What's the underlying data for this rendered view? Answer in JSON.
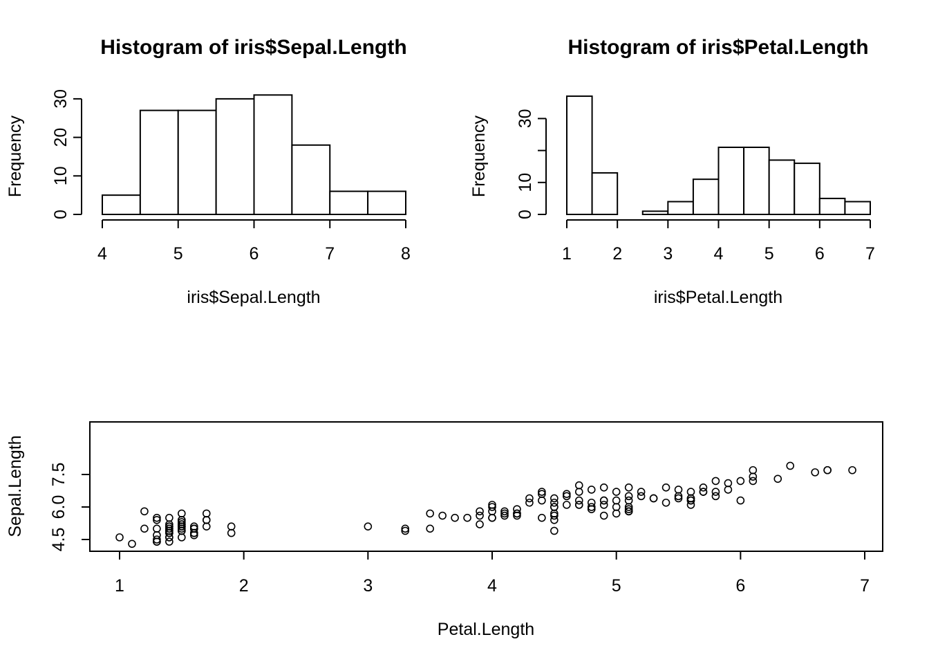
{
  "chart_data": [
    {
      "type": "bar",
      "subtype": "histogram",
      "title": "Histogram of iris$Sepal.Length",
      "xlabel": "iris$Sepal.Length",
      "ylabel": "Frequency",
      "breaks": [
        4,
        4.5,
        5,
        5.5,
        6,
        6.5,
        7,
        7.5,
        8
      ],
      "values": [
        5,
        27,
        27,
        30,
        31,
        18,
        6,
        6
      ],
      "xlim": [
        4,
        8
      ],
      "ylim": [
        0,
        31
      ],
      "xticks": [
        4,
        5,
        6,
        7,
        8
      ],
      "yticks": [
        0,
        10,
        20,
        30
      ],
      "grid": false
    },
    {
      "type": "bar",
      "subtype": "histogram",
      "title": "Histogram of iris$Petal.Length",
      "xlabel": "iris$Petal.Length",
      "ylabel": "Frequency",
      "breaks": [
        1,
        1.5,
        2,
        2.5,
        3,
        3.5,
        4,
        4.5,
        5,
        5.5,
        6,
        6.5,
        7
      ],
      "values": [
        37,
        13,
        0,
        1,
        4,
        11,
        21,
        21,
        17,
        16,
        5,
        4
      ],
      "xlim": [
        1,
        7
      ],
      "ylim": [
        0,
        37
      ],
      "xticks": [
        1,
        2,
        3,
        4,
        5,
        6,
        7
      ],
      "yticks": [
        0,
        10,
        20,
        30
      ],
      "ytick_labels": [
        "0",
        "10",
        "",
        "30"
      ],
      "grid": false
    },
    {
      "type": "scatter",
      "xlabel": "Petal.Length",
      "ylabel": "Sepal.Length",
      "xlim": [
        0.76,
        7.14
      ],
      "ylim": [
        4.3,
        7.9
      ],
      "xticks": [
        1,
        2,
        3,
        4,
        5,
        6,
        7
      ],
      "yticks": [
        4.5,
        6.0,
        7.5
      ],
      "ytick_labels": [
        "4.5",
        "6.0",
        "7.5"
      ],
      "grid": false,
      "points": [
        [
          1.4,
          5.1
        ],
        [
          1.4,
          4.9
        ],
        [
          1.3,
          4.7
        ],
        [
          1.5,
          4.6
        ],
        [
          1.4,
          5.0
        ],
        [
          1.7,
          5.4
        ],
        [
          1.4,
          4.6
        ],
        [
          1.5,
          5.0
        ],
        [
          1.4,
          4.4
        ],
        [
          1.5,
          4.9
        ],
        [
          1.5,
          5.4
        ],
        [
          1.6,
          4.8
        ],
        [
          1.4,
          4.8
        ],
        [
          1.1,
          4.3
        ],
        [
          1.2,
          5.8
        ],
        [
          1.5,
          5.7
        ],
        [
          1.3,
          5.4
        ],
        [
          1.4,
          5.1
        ],
        [
          1.7,
          5.7
        ],
        [
          1.5,
          5.1
        ],
        [
          1.7,
          5.4
        ],
        [
          1.5,
          5.1
        ],
        [
          1.0,
          4.6
        ],
        [
          1.7,
          5.1
        ],
        [
          1.9,
          4.8
        ],
        [
          1.6,
          5.0
        ],
        [
          1.6,
          5.0
        ],
        [
          1.5,
          5.2
        ],
        [
          1.4,
          5.2
        ],
        [
          1.6,
          4.7
        ],
        [
          1.6,
          4.8
        ],
        [
          1.5,
          5.4
        ],
        [
          1.5,
          5.2
        ],
        [
          1.4,
          5.5
        ],
        [
          1.5,
          4.9
        ],
        [
          1.2,
          5.0
        ],
        [
          1.3,
          5.5
        ],
        [
          1.4,
          4.9
        ],
        [
          1.3,
          4.4
        ],
        [
          1.5,
          5.1
        ],
        [
          1.3,
          5.0
        ],
        [
          1.3,
          4.5
        ],
        [
          1.3,
          4.4
        ],
        [
          1.6,
          5.0
        ],
        [
          1.9,
          5.1
        ],
        [
          1.4,
          4.8
        ],
        [
          1.6,
          5.1
        ],
        [
          1.4,
          4.6
        ],
        [
          1.5,
          5.3
        ],
        [
          1.4,
          5.0
        ],
        [
          4.7,
          7.0
        ],
        [
          4.5,
          6.4
        ],
        [
          4.9,
          6.9
        ],
        [
          4.0,
          5.5
        ],
        [
          4.6,
          6.5
        ],
        [
          4.5,
          5.7
        ],
        [
          4.7,
          6.3
        ],
        [
          3.3,
          4.9
        ],
        [
          4.6,
          6.6
        ],
        [
          3.9,
          5.2
        ],
        [
          3.5,
          5.0
        ],
        [
          4.2,
          5.9
        ],
        [
          4.0,
          6.0
        ],
        [
          4.7,
          6.1
        ],
        [
          3.6,
          5.6
        ],
        [
          4.4,
          6.7
        ],
        [
          4.5,
          5.6
        ],
        [
          4.1,
          5.8
        ],
        [
          4.5,
          6.2
        ],
        [
          3.9,
          5.6
        ],
        [
          4.8,
          5.9
        ],
        [
          4.0,
          6.1
        ],
        [
          4.9,
          6.3
        ],
        [
          4.7,
          6.1
        ],
        [
          4.3,
          6.4
        ],
        [
          4.4,
          6.6
        ],
        [
          4.8,
          6.8
        ],
        [
          5.0,
          6.7
        ],
        [
          4.5,
          6.0
        ],
        [
          3.5,
          5.7
        ],
        [
          3.8,
          5.5
        ],
        [
          3.7,
          5.5
        ],
        [
          3.9,
          5.8
        ],
        [
          5.1,
          6.0
        ],
        [
          4.5,
          5.4
        ],
        [
          4.5,
          6.0
        ],
        [
          4.7,
          6.7
        ],
        [
          4.4,
          6.3
        ],
        [
          4.1,
          5.6
        ],
        [
          4.0,
          5.5
        ],
        [
          4.4,
          5.5
        ],
        [
          4.6,
          6.1
        ],
        [
          4.0,
          5.8
        ],
        [
          3.3,
          5.0
        ],
        [
          4.2,
          5.6
        ],
        [
          4.2,
          5.7
        ],
        [
          4.2,
          5.7
        ],
        [
          4.3,
          6.2
        ],
        [
          3.0,
          5.1
        ],
        [
          4.1,
          5.7
        ],
        [
          6.0,
          6.3
        ],
        [
          5.1,
          5.8
        ],
        [
          5.9,
          7.1
        ],
        [
          5.6,
          6.3
        ],
        [
          5.8,
          6.5
        ],
        [
          6.6,
          7.6
        ],
        [
          4.5,
          4.9
        ],
        [
          6.3,
          7.3
        ],
        [
          5.8,
          6.7
        ],
        [
          6.1,
          7.2
        ],
        [
          5.1,
          6.5
        ],
        [
          5.3,
          6.4
        ],
        [
          5.5,
          6.8
        ],
        [
          5.0,
          5.7
        ],
        [
          5.1,
          5.8
        ],
        [
          5.3,
          6.4
        ],
        [
          5.5,
          6.5
        ],
        [
          6.7,
          7.7
        ],
        [
          6.9,
          7.7
        ],
        [
          5.0,
          6.0
        ],
        [
          5.7,
          6.9
        ],
        [
          4.9,
          5.6
        ],
        [
          6.7,
          7.7
        ],
        [
          4.9,
          6.3
        ],
        [
          5.7,
          6.7
        ],
        [
          6.0,
          7.2
        ],
        [
          4.8,
          6.2
        ],
        [
          4.9,
          6.1
        ],
        [
          5.6,
          6.4
        ],
        [
          5.8,
          7.2
        ],
        [
          6.1,
          7.4
        ],
        [
          6.4,
          7.9
        ],
        [
          5.6,
          6.4
        ],
        [
          5.1,
          6.3
        ],
        [
          5.6,
          6.1
        ],
        [
          6.1,
          7.7
        ],
        [
          5.6,
          6.3
        ],
        [
          5.5,
          6.4
        ],
        [
          4.8,
          6.0
        ],
        [
          5.4,
          6.9
        ],
        [
          5.6,
          6.7
        ],
        [
          5.1,
          6.9
        ],
        [
          5.1,
          5.8
        ],
        [
          5.9,
          6.8
        ],
        [
          5.7,
          6.7
        ],
        [
          5.2,
          6.7
        ],
        [
          5.0,
          6.3
        ],
        [
          5.2,
          6.5
        ],
        [
          5.4,
          6.2
        ],
        [
          5.1,
          5.9
        ]
      ]
    }
  ]
}
